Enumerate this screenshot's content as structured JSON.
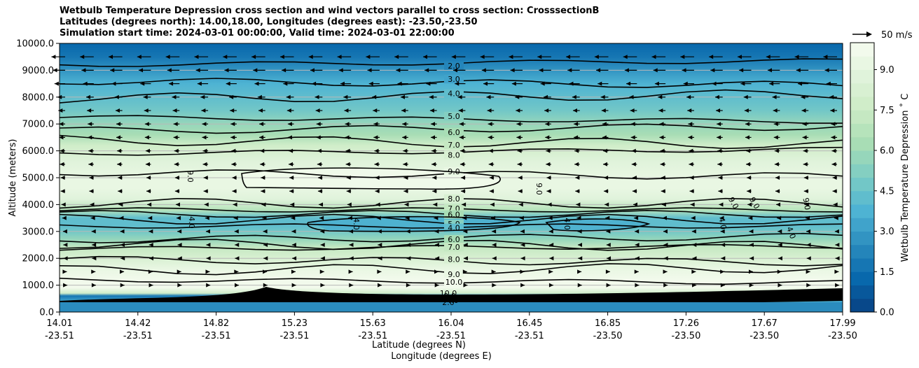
{
  "chart_data": {
    "type": "heatmap",
    "title_lines": [
      "Wetbulb Temperature Depression cross section and wind vectors parallel to cross section: CrosssectionB",
      "Latitudes (degrees north): 14.00,18.00, Longitudes (degrees east): -23.50,-23.50",
      "Simulation start time: 2024-03-01 00:00:00, Valid time: 2024-03-01 22:00:00"
    ],
    "xlabel_lines": [
      "Latitude (degrees N)",
      "Longitude (degrees E)"
    ],
    "ylabel": "Altitude (meters)",
    "x_ticks": [
      {
        "lat": "14.01",
        "lon": "-23.51"
      },
      {
        "lat": "14.42",
        "lon": "-23.51"
      },
      {
        "lat": "14.82",
        "lon": "-23.51"
      },
      {
        "lat": "15.23",
        "lon": "-23.51"
      },
      {
        "lat": "15.63",
        "lon": "-23.51"
      },
      {
        "lat": "16.04",
        "lon": "-23.51"
      },
      {
        "lat": "16.45",
        "lon": "-23.51"
      },
      {
        "lat": "16.85",
        "lon": "-23.50"
      },
      {
        "lat": "17.26",
        "lon": "-23.50"
      },
      {
        "lat": "17.67",
        "lon": "-23.50"
      },
      {
        "lat": "17.99",
        "lon": "-23.50"
      }
    ],
    "y_ticks": [
      "0.0",
      "1000.0",
      "2000.0",
      "3000.0",
      "4000.0",
      "5000.0",
      "6000.0",
      "7000.0",
      "8000.0",
      "9000.0",
      "10000.0"
    ],
    "ylim": [
      0,
      10000
    ],
    "colorbar": {
      "label": "Wetbulb Temperature Depression $^\\circ$C",
      "label_text": "Wetbulb Temperature Depression ˚ C",
      "ticks": [
        "0.0",
        "1.5",
        "3.0",
        "4.5",
        "6.0",
        "7.5",
        "9.0"
      ],
      "range": [
        0,
        10
      ],
      "colormap": "GnBu_r"
    },
    "profile": {
      "altitude": [
        0,
        350,
        600,
        700,
        900,
        1200,
        1600,
        2000,
        2400,
        2700,
        3000,
        3200,
        3500,
        3800,
        4200,
        4600,
        5000,
        5600,
        6200,
        6600,
        7000,
        7500,
        8000,
        8500,
        9000,
        9500,
        10000
      ],
      "value": [
        3.2,
        3.6,
        1.5,
        7.5,
        9.9,
        9.6,
        9.0,
        8.0,
        7.0,
        5.5,
        4.6,
        4.0,
        4.3,
        6.5,
        8.7,
        9.3,
        9.4,
        8.8,
        7.6,
        6.4,
        5.5,
        4.8,
        4.2,
        3.5,
        2.7,
        1.9,
        1.1
      ]
    },
    "contours": [
      {
        "level": "2.0",
        "altitude": 9200
      },
      {
        "level": "3.0",
        "altitude": 8600
      },
      {
        "level": "4.0",
        "altitude": 7950
      },
      {
        "level": "5.0",
        "altitude": 7250
      },
      {
        "level": "6.0",
        "altitude": 6750
      },
      {
        "level": "7.0",
        "altitude": 6400
      },
      {
        "level": "8.0",
        "altitude": 5900
      },
      {
        "level": "9.0",
        "altitude": 5200
      },
      {
        "level": "8.0",
        "altitude": 4050
      },
      {
        "level": "7.0",
        "altitude": 3800
      },
      {
        "level": "6.0",
        "altitude": 3650
      },
      {
        "level": "5.0",
        "altitude": 3450
      },
      {
        "level": "4.0",
        "altitude": 3200
      },
      {
        "level": "5.0",
        "altitude": 2700
      },
      {
        "level": "6.0",
        "altitude": 2550
      },
      {
        "level": "7.0",
        "altitude": 2350
      },
      {
        "level": "8.0",
        "altitude": 1950
      },
      {
        "level": "9.0",
        "altitude": 1550
      },
      {
        "level": "10.0",
        "altitude": 1200
      }
    ],
    "surface_labels": [
      "10.0",
      "9.0",
      "8.0",
      "2.0",
      "4.0"
    ],
    "inline_labels": [
      "9.0",
      "4.0",
      "4.0",
      "4.0",
      "9.0",
      "9.0",
      "9.0",
      "9.0",
      "4.0",
      "4.0"
    ],
    "vector_key": {
      "label": "50 m/s"
    },
    "wind_rows": [
      {
        "altitude": 9500,
        "u": -0.8
      },
      {
        "altitude": 9000,
        "u": -0.7
      },
      {
        "altitude": 8500,
        "u": -0.6
      },
      {
        "altitude": 8000,
        "u": -0.4
      },
      {
        "altitude": 7500,
        "u": -0.35
      },
      {
        "altitude": 7000,
        "u": -0.3
      },
      {
        "altitude": 6500,
        "u": -0.3
      },
      {
        "altitude": 6000,
        "u": -0.25
      },
      {
        "altitude": 5500,
        "u": -0.25
      },
      {
        "altitude": 5000,
        "u": -0.2
      },
      {
        "altitude": 4500,
        "u": -0.2
      },
      {
        "altitude": 4000,
        "u": -0.15
      },
      {
        "altitude": 3500,
        "u": -0.1
      },
      {
        "altitude": 3000,
        "u": -0.05
      },
      {
        "altitude": 2500,
        "u": -0.03
      },
      {
        "altitude": 2000,
        "u": -0.02
      },
      {
        "altitude": 1500,
        "u": 0.02
      },
      {
        "altitude": 1000,
        "u": 0.05
      }
    ]
  }
}
